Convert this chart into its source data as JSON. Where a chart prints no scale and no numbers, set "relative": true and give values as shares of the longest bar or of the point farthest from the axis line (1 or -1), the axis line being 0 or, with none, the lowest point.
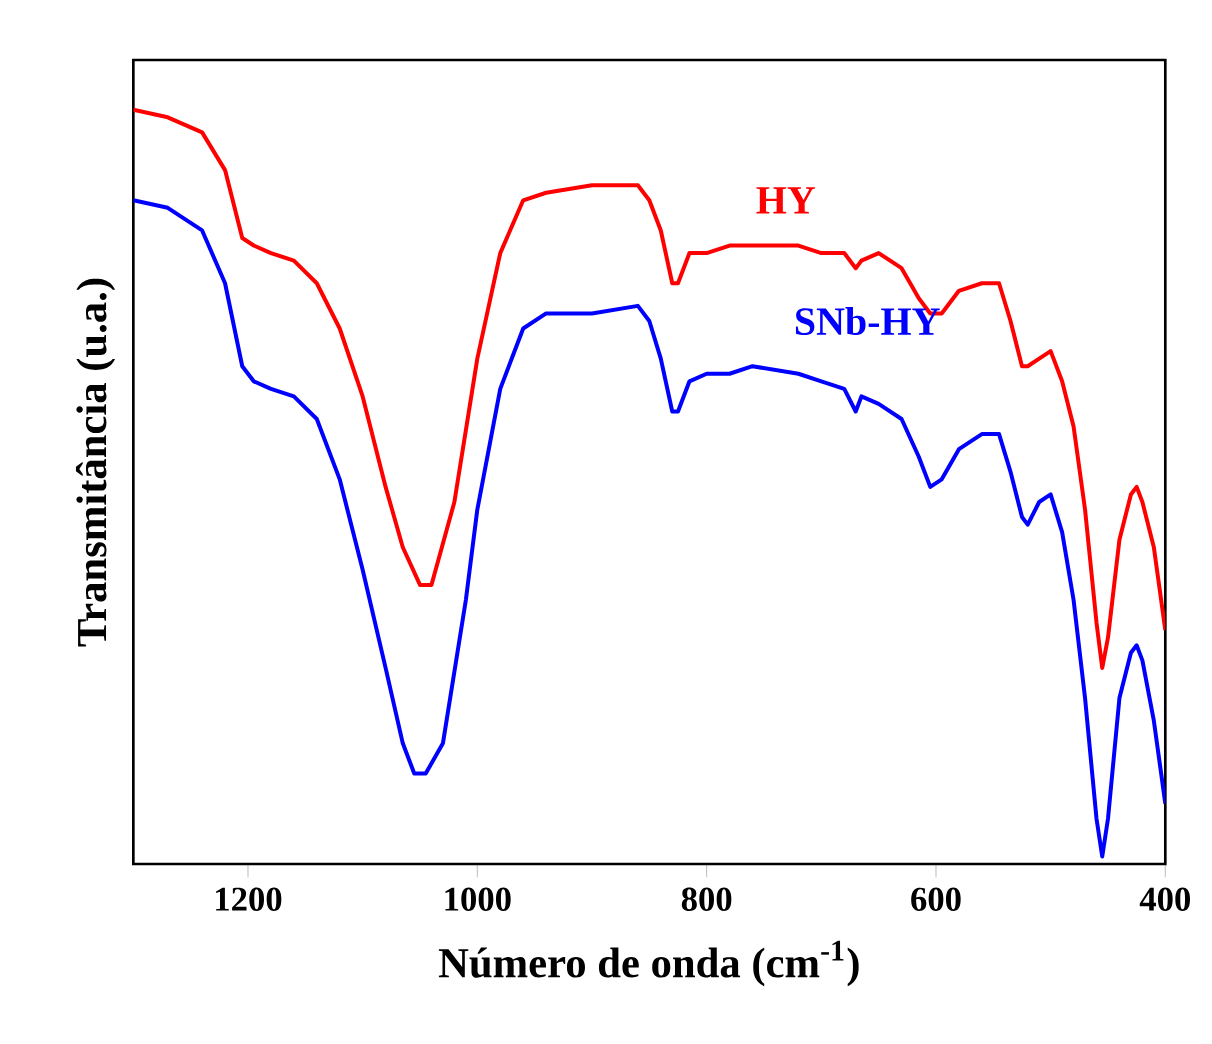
{
  "chart_data": {
    "type": "line",
    "relative": true,
    "xlabel": "Número de onda (cm$^{-1}$)",
    "ylabel": "Transmitância (u.a.)",
    "xlim": [
      1300,
      400
    ],
    "xticks": [
      1200,
      1000,
      800,
      600,
      400
    ],
    "grid": false,
    "series": [
      {
        "name": "HY",
        "color": "#ff0000",
        "x": [
          1300,
          1270,
          1240,
          1220,
          1205,
          1195,
          1180,
          1160,
          1140,
          1120,
          1100,
          1080,
          1065,
          1050,
          1040,
          1020,
          1000,
          980,
          960,
          940,
          900,
          860,
          850,
          840,
          830,
          825,
          815,
          800,
          780,
          760,
          720,
          700,
          680,
          670,
          665,
          650,
          630,
          615,
          605,
          595,
          580,
          560,
          545,
          535,
          525,
          520,
          510,
          500,
          490,
          480,
          470,
          460,
          455,
          450,
          440,
          430,
          425,
          420,
          410,
          400
        ],
        "values": [
          1.0,
          0.99,
          0.97,
          0.92,
          0.83,
          0.82,
          0.81,
          0.8,
          0.77,
          0.71,
          0.62,
          0.5,
          0.42,
          0.37,
          0.37,
          0.48,
          0.67,
          0.81,
          0.88,
          0.89,
          0.9,
          0.9,
          0.88,
          0.84,
          0.77,
          0.77,
          0.81,
          0.81,
          0.82,
          0.82,
          0.82,
          0.81,
          0.81,
          0.79,
          0.8,
          0.81,
          0.79,
          0.75,
          0.73,
          0.73,
          0.76,
          0.77,
          0.77,
          0.72,
          0.66,
          0.66,
          0.67,
          0.68,
          0.64,
          0.58,
          0.47,
          0.32,
          0.26,
          0.3,
          0.43,
          0.49,
          0.5,
          0.48,
          0.42,
          0.31
        ]
      },
      {
        "name": "SNb-HY",
        "color": "#0000ff",
        "x": [
          1300,
          1270,
          1240,
          1220,
          1205,
          1195,
          1180,
          1160,
          1140,
          1120,
          1100,
          1080,
          1065,
          1055,
          1045,
          1030,
          1010,
          1000,
          980,
          960,
          940,
          900,
          860,
          850,
          840,
          830,
          825,
          815,
          800,
          780,
          760,
          720,
          700,
          680,
          670,
          665,
          650,
          630,
          615,
          605,
          595,
          580,
          560,
          545,
          535,
          525,
          520,
          510,
          500,
          490,
          480,
          470,
          460,
          455,
          450,
          440,
          430,
          425,
          420,
          410,
          400
        ],
        "values": [
          0.88,
          0.87,
          0.84,
          0.77,
          0.66,
          0.64,
          0.63,
          0.62,
          0.59,
          0.51,
          0.39,
          0.26,
          0.16,
          0.12,
          0.12,
          0.16,
          0.35,
          0.47,
          0.63,
          0.71,
          0.73,
          0.73,
          0.74,
          0.72,
          0.67,
          0.6,
          0.6,
          0.64,
          0.65,
          0.65,
          0.66,
          0.65,
          0.64,
          0.63,
          0.6,
          0.62,
          0.61,
          0.59,
          0.54,
          0.5,
          0.51,
          0.55,
          0.57,
          0.57,
          0.52,
          0.46,
          0.45,
          0.48,
          0.49,
          0.44,
          0.35,
          0.22,
          0.06,
          0.01,
          0.06,
          0.22,
          0.28,
          0.29,
          0.27,
          0.19,
          0.08
        ]
      }
    ]
  }
}
